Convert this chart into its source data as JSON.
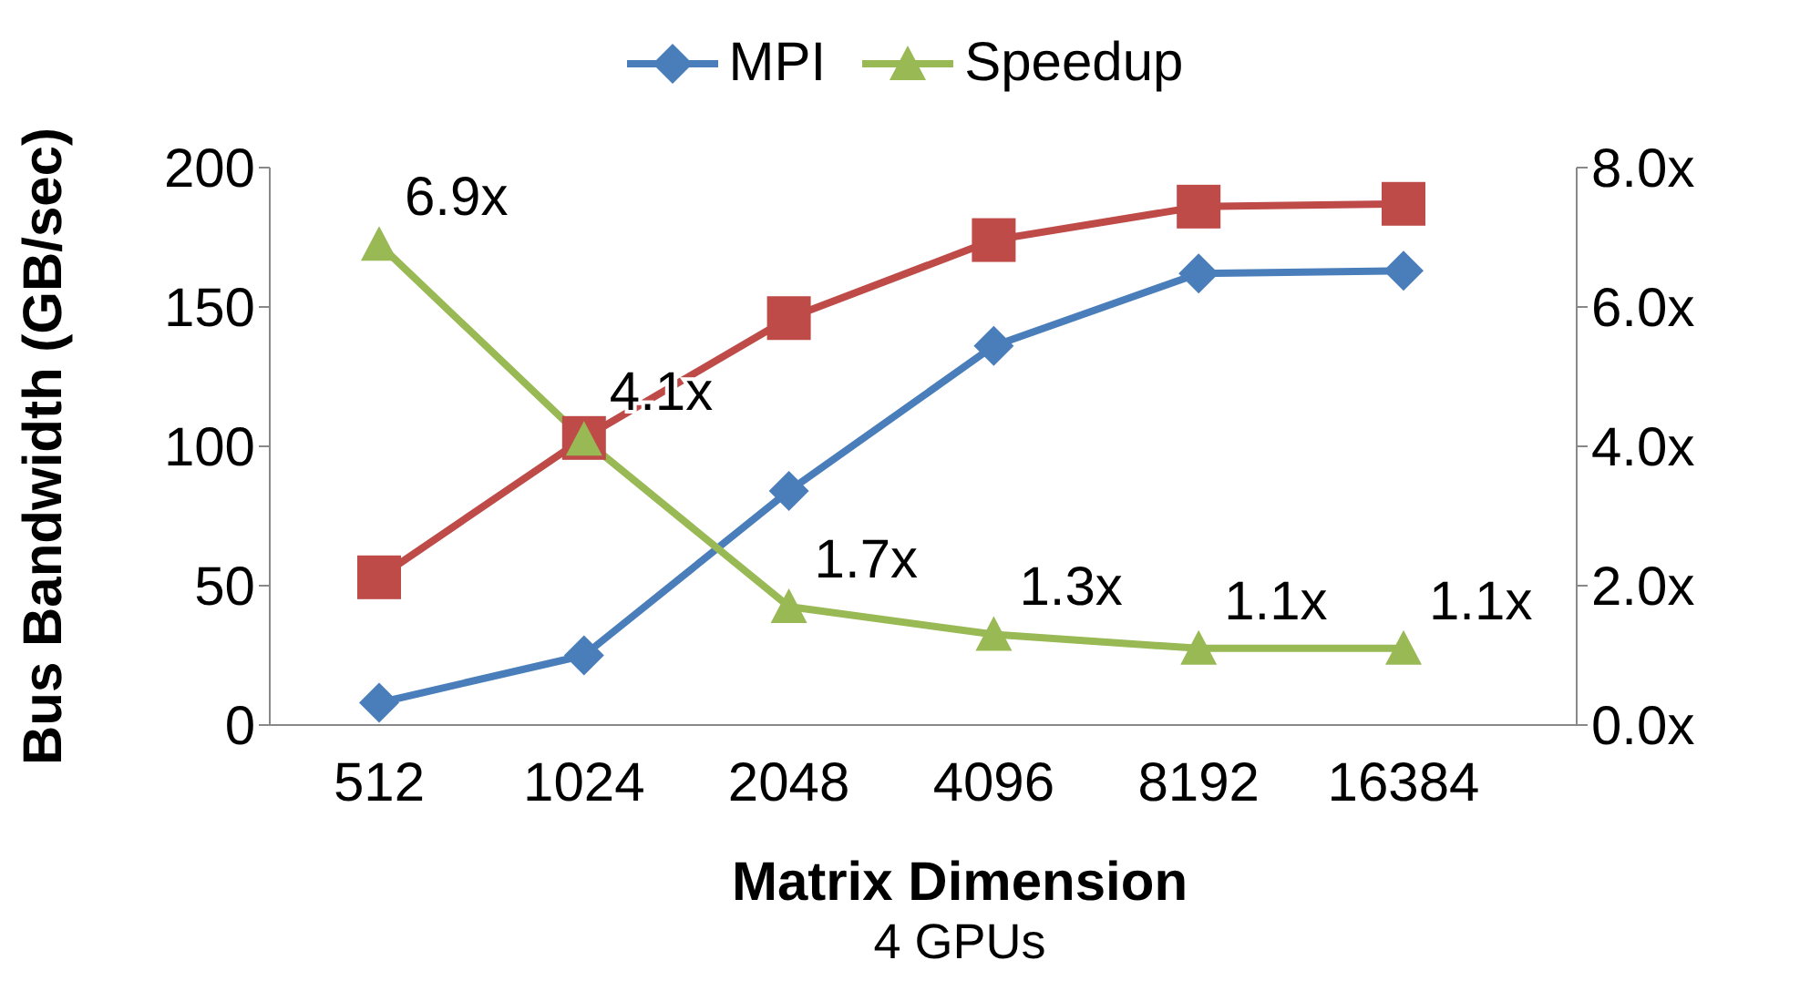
{
  "chart_data": {
    "type": "line",
    "categories": [
      "512",
      "1024",
      "2048",
      "4096",
      "8192",
      "16384"
    ],
    "series": [
      {
        "name": "MPI",
        "color": "#4a7ebb",
        "marker": "diamond",
        "values": [
          8,
          25,
          84,
          136,
          162,
          163
        ]
      },
      {
        "color": "#be4b48",
        "marker": "square",
        "values": [
          53,
          103,
          146,
          174,
          186,
          187
        ]
      },
      {
        "name": "Speedup",
        "color": "#98b954",
        "marker": "triangle",
        "axis": "y2",
        "values": [
          6.9,
          4.1,
          1.7,
          1.3,
          1.1,
          1.1
        ],
        "value_labels": [
          "6.9x",
          "4.1x",
          "1.7x",
          "1.3x",
          "1.1x",
          "1.1x"
        ]
      }
    ],
    "ylim": [
      0,
      200
    ],
    "yticks": [
      0,
      50,
      100,
      150,
      200
    ],
    "y2lim": [
      0,
      8
    ],
    "y2ticks": [
      {
        "value": 0,
        "label": "0.0x"
      },
      {
        "value": 2,
        "label": "2.0x"
      },
      {
        "value": 4,
        "label": "4.0x"
      },
      {
        "value": 6,
        "label": "6.0x"
      },
      {
        "value": 8,
        "label": "8.0x"
      }
    ],
    "xlabel": "Matrix Dimension",
    "ylabel": "Bus Bandwidth (GB/sec)",
    "annotations": [
      "4 GPUs"
    ],
    "legend": "top"
  }
}
